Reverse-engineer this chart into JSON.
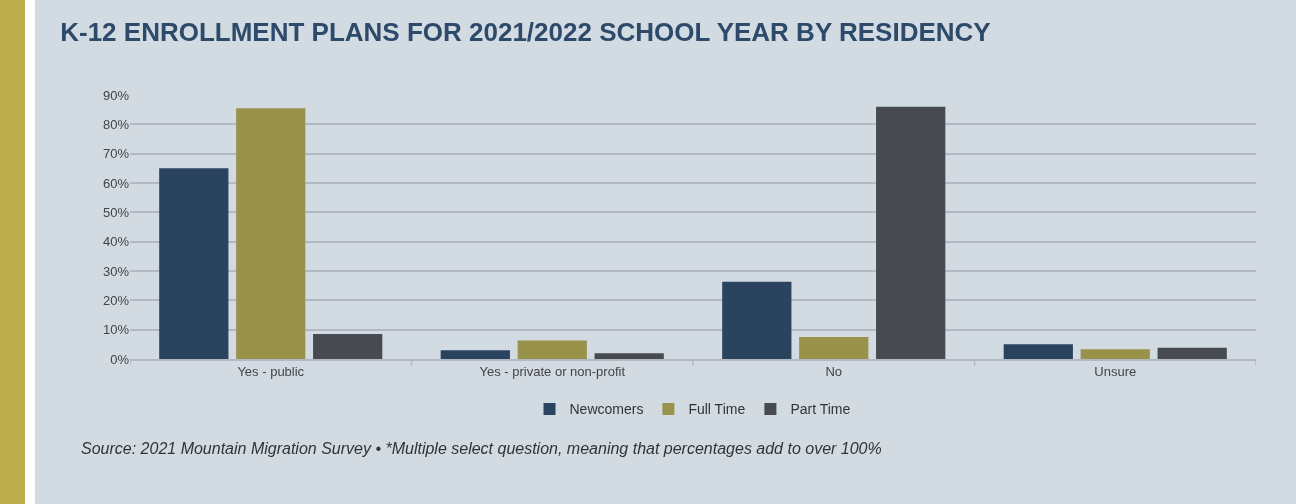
{
  "chart_data": {
    "type": "bar",
    "title": "K-12 ENROLLMENT PLANS FOR 2021/2022 SCHOOL YEAR BY RESIDENCY",
    "categories": [
      "Yes - public",
      "Yes - private or non-profit",
      "No",
      "Unsure"
    ],
    "series": [
      {
        "name": "Newcomers",
        "color": "#2a445f",
        "values": [
          65,
          3,
          26.3,
          5
        ]
      },
      {
        "name": "Full Time",
        "color": "#98924b",
        "values": [
          85.5,
          6.3,
          7.5,
          3.3
        ]
      },
      {
        "name": "Part Time",
        "color": "#474a50",
        "values": [
          8.5,
          2,
          86,
          3.8
        ]
      }
    ],
    "ylim": [
      0,
      90
    ],
    "yticks": [
      {
        "value": 0,
        "label": "0%"
      },
      {
        "value": 10,
        "label": "10%"
      },
      {
        "value": 20,
        "label": "20%"
      },
      {
        "value": 30,
        "label": "30%"
      },
      {
        "value": 40,
        "label": "40%"
      },
      {
        "value": 50,
        "label": "50%"
      },
      {
        "value": 60,
        "label": "60%"
      },
      {
        "value": 70,
        "label": "70%"
      },
      {
        "value": 80,
        "label": "80%"
      },
      {
        "value": 90,
        "label": "90%"
      }
    ],
    "grid": "y",
    "legend": "bottom",
    "annotations": [
      "Source: 2021 Mountain Migration Survey • *Multiple select question, meaning that percentages add to over 100%"
    ]
  }
}
